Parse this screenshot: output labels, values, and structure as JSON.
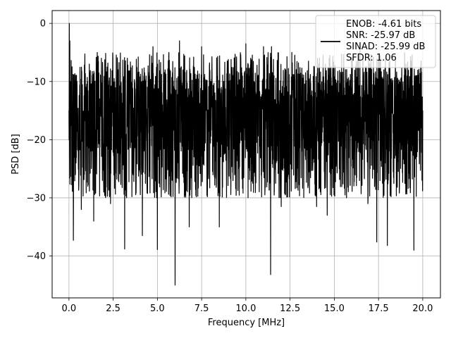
{
  "chart_data": {
    "type": "line",
    "title": "",
    "xlabel": "Frequency [MHz]",
    "ylabel": "PSD [dB]",
    "xlim": [
      -0.95,
      21.0
    ],
    "ylim": [
      -47.2,
      2.2
    ],
    "xticks": [
      0.0,
      2.5,
      5.0,
      7.5,
      10.0,
      12.5,
      15.0,
      17.5,
      20.0
    ],
    "xtick_labels": [
      "0.0",
      "2.5",
      "5.0",
      "7.5",
      "10.0",
      "12.5",
      "15.0",
      "17.5",
      "20.0"
    ],
    "yticks": [
      0,
      -10,
      -20,
      -30,
      -40
    ],
    "ytick_labels": [
      "0",
      "−10",
      "−20",
      "−30",
      "−40"
    ],
    "grid": true,
    "legend_position": "top-right",
    "legend": [
      "ENOB: -4.61 bits",
      "SNR: -25.97 dB",
      "SINAD: -25.99 dB",
      "SFDR: 1.06"
    ],
    "series": [
      {
        "color": "#000000",
        "x_range": [
          0.0,
          20.0
        ],
        "noise_band": [
          -30.0,
          -5.0
        ],
        "typical_level": -15,
        "x": [
          0.0,
          0.02,
          0.05,
          0.1,
          0.2,
          0.25,
          0.4,
          0.7,
          1.15,
          1.4,
          1.6,
          2.35,
          3.15,
          3.3,
          4.15,
          4.75,
          5.0,
          5.65,
          6.0,
          6.25,
          6.8,
          7.5,
          8.5,
          8.95,
          10.0,
          11.0,
          11.4,
          11.45,
          12.0,
          12.6,
          14.0,
          14.5,
          14.6,
          16.45,
          16.9,
          17.4,
          17.8,
          18.0,
          19.05,
          19.5,
          19.6,
          20.0
        ],
        "y": [
          -15,
          0,
          -3,
          -10,
          -23,
          -37.3,
          -24,
          -32,
          -7,
          -34,
          -5,
          -31,
          -38.8,
          -6,
          -36.5,
          -4,
          -38.9,
          -5,
          -45,
          -3,
          -35,
          -4,
          -35,
          -6.5,
          -3.5,
          -4,
          -43.2,
          -4,
          -31.5,
          -5,
          -31.5,
          -7,
          -33,
          -4,
          -31,
          -37.6,
          -8,
          -38.2,
          -7,
          -39,
          -9,
          -15
        ]
      }
    ]
  }
}
